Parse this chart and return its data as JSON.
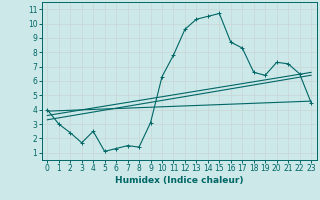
{
  "title": "",
  "xlabel": "Humidex (Indice chaleur)",
  "bg_color": "#cce8e8",
  "grid_color": "#c8d8d8",
  "line_color": "#006666",
  "xlim": [
    -0.5,
    23.5
  ],
  "ylim": [
    0.5,
    11.5
  ],
  "xticks": [
    0,
    1,
    2,
    3,
    4,
    5,
    6,
    7,
    8,
    9,
    10,
    11,
    12,
    13,
    14,
    15,
    16,
    17,
    18,
    19,
    20,
    21,
    22,
    23
  ],
  "yticks": [
    1,
    2,
    3,
    4,
    5,
    6,
    7,
    8,
    9,
    10,
    11
  ],
  "curve1_x": [
    0,
    1,
    2,
    3,
    4,
    5,
    6,
    7,
    8,
    9,
    10,
    11,
    12,
    13,
    14,
    15,
    16,
    17,
    18,
    19,
    20,
    21,
    22,
    23
  ],
  "curve1_y": [
    4.0,
    3.0,
    2.4,
    1.7,
    2.5,
    1.1,
    1.3,
    1.5,
    1.4,
    3.1,
    6.3,
    7.8,
    9.6,
    10.3,
    10.5,
    10.7,
    8.7,
    8.3,
    6.6,
    6.4,
    7.3,
    7.2,
    6.5,
    4.5
  ],
  "curve2_x": [
    0,
    23
  ],
  "curve2_y": [
    3.9,
    4.6
  ],
  "curve3_x": [
    0,
    23
  ],
  "curve3_y": [
    3.6,
    6.6
  ],
  "curve4_x": [
    0,
    23
  ],
  "curve4_y": [
    3.3,
    6.4
  ]
}
